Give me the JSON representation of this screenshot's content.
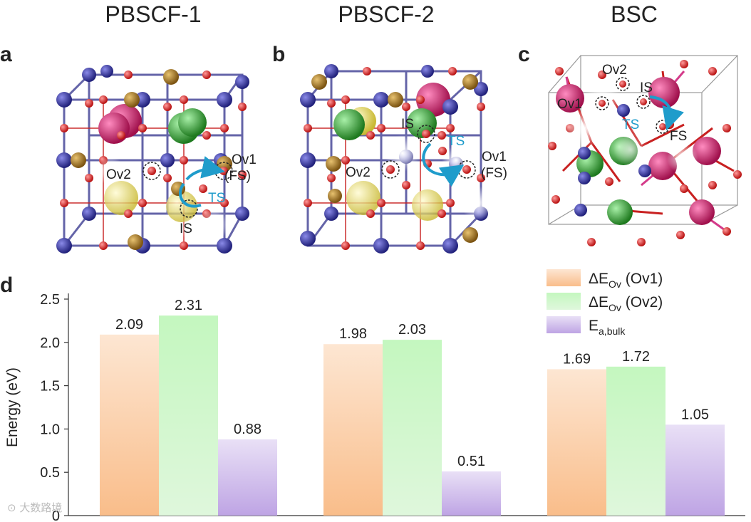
{
  "panels": {
    "titles": [
      "PBSCF-1",
      "PBSCF-2",
      "BSC"
    ],
    "letters": {
      "a": "a",
      "b": "b",
      "c": "c",
      "d": "d"
    },
    "a_labels": {
      "ov2": "Ov2",
      "ov1": "Ov1",
      "fs": "(FS)",
      "ts": "TS",
      "is": "IS"
    },
    "b_labels": {
      "is": "IS",
      "ts": "TS",
      "ov2": "Ov2",
      "ov1": "Ov1",
      "fs": "(FS)"
    },
    "c_labels": {
      "ov2": "Ov2",
      "is": "IS",
      "ov1": "Ov1",
      "ts": "TS",
      "fs": "FS"
    }
  },
  "colors": {
    "oxygen": "#d42b2b",
    "b_site": "#33339a",
    "cobalt_gold": "#a8781e",
    "pink": "#d01d6a",
    "green": "#3aa93a",
    "yellow": "#e8da5a",
    "arrow": "#1f9ccb",
    "bar_orange": "#f9c497",
    "bar_green": "#a4ec9e",
    "bar_purple": "#c6aee6"
  },
  "chart_data": {
    "type": "bar",
    "categories": [
      "PBSCF-1",
      "PBSCF-2",
      "BSC"
    ],
    "series": [
      {
        "name": "ΔE_Ov (Ov1)",
        "values": [
          2.09,
          1.98,
          1.69
        ]
      },
      {
        "name": "ΔE_Ov (Ov2)",
        "values": [
          2.31,
          2.03,
          1.72
        ]
      },
      {
        "name": "E_a,bulk",
        "values": [
          0.88,
          0.51,
          1.05
        ]
      }
    ],
    "value_labels": [
      [
        "2.09",
        "1.98",
        "1.69"
      ],
      [
        "2.31",
        "2.03",
        "1.72"
      ],
      [
        "0.88",
        "0.51",
        "1.05"
      ]
    ],
    "ylabel": "Energy (eV)",
    "yticks": [
      "0",
      "0.5",
      "1.0",
      "1.5",
      "2.0",
      "2.5"
    ],
    "ylim": [
      0,
      2.5
    ],
    "legend_position": "top-right",
    "legend": [
      {
        "main": "ΔE",
        "sub": "Ov",
        "suffix": " (Ov1)"
      },
      {
        "main": "ΔE",
        "sub": "Ov",
        "suffix": " (Ov2)"
      },
      {
        "main": "E",
        "sub": "a,bulk",
        "suffix": ""
      }
    ],
    "grid": false
  },
  "watermark": "⊙ 大数路境"
}
